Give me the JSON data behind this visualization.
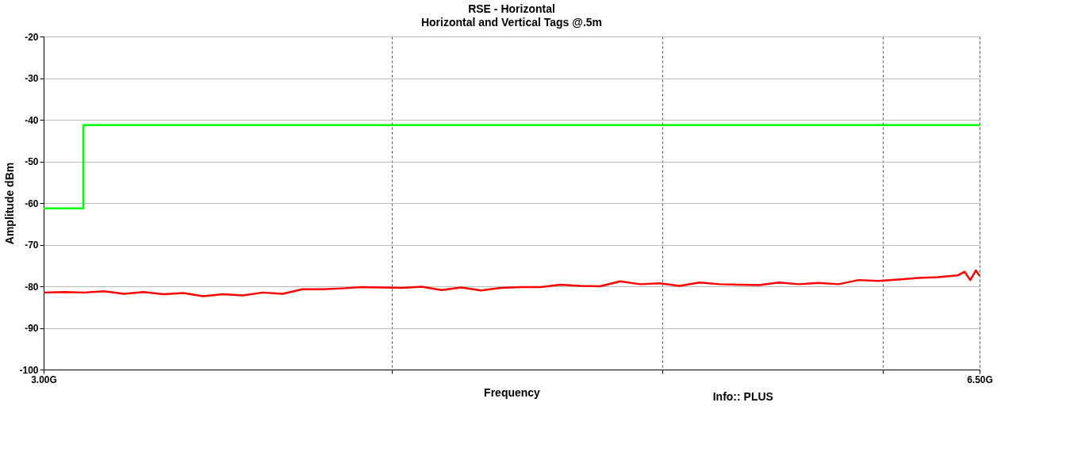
{
  "chart_data": {
    "type": "line",
    "title": "RSE - Horizontal",
    "subtitle": "Horizontal and Vertical Tags @.5m",
    "xlabel": "Frequency",
    "ylabel": "Amplitude dBm",
    "annotations": [
      "Info:: PLUS"
    ],
    "log": "x",
    "grid": true,
    "legend": false,
    "marker": "none",
    "line_style": "solid",
    "xlim": [
      3.0,
      6.5
    ],
    "xticks": [
      {
        "value": 3.0,
        "label": "3.00G"
      },
      {
        "value": 4.0,
        "label": null
      },
      {
        "value": 5.0,
        "label": null
      },
      {
        "value": 6.0,
        "label": null
      },
      {
        "value": 6.5,
        "label": "6.50G"
      }
    ],
    "ylim": [
      -100,
      -20
    ],
    "yticks": [
      -100,
      -90,
      -80,
      -70,
      -60,
      -50,
      -40,
      -30,
      -20
    ],
    "series": [
      {
        "type": "step",
        "color": "#00ff00",
        "x": [
          3.0,
          3.1,
          6.5
        ],
        "values": [
          -61.3,
          -41.3,
          -41.3
        ]
      },
      {
        "type": "line",
        "color": "#ff0000",
        "x": [
          3.0,
          3.052,
          3.102,
          3.153,
          3.206,
          3.258,
          3.312,
          3.367,
          3.422,
          3.479,
          3.537,
          3.595,
          3.655,
          3.715,
          3.776,
          3.839,
          3.902,
          3.967,
          4.032,
          4.099,
          4.167,
          4.236,
          4.306,
          4.377,
          4.449,
          4.523,
          4.598,
          4.674,
          4.751,
          4.83,
          4.91,
          4.991,
          5.073,
          5.157,
          5.243,
          5.329,
          5.417,
          5.507,
          5.598,
          5.691,
          5.785,
          5.881,
          5.978,
          6.077,
          6.177,
          6.279,
          6.383,
          6.42,
          6.45,
          6.48,
          6.5
        ],
        "values": [
          -81.5,
          -81.4,
          -81.5,
          -81.2,
          -81.8,
          -81.4,
          -81.9,
          -81.6,
          -82.4,
          -81.9,
          -82.2,
          -81.5,
          -81.8,
          -80.7,
          -80.7,
          -80.5,
          -80.2,
          -80.3,
          -80.4,
          -80.1,
          -80.9,
          -80.3,
          -81.0,
          -80.4,
          -80.2,
          -80.2,
          -79.6,
          -79.9,
          -80.0,
          -78.8,
          -79.5,
          -79.3,
          -79.9,
          -79.1,
          -79.5,
          -79.6,
          -79.7,
          -79.1,
          -79.5,
          -79.2,
          -79.5,
          -78.5,
          -78.7,
          -78.4,
          -78.0,
          -77.8,
          -77.4,
          -76.5,
          -78.5,
          -76.2,
          -77.5
        ]
      }
    ]
  }
}
